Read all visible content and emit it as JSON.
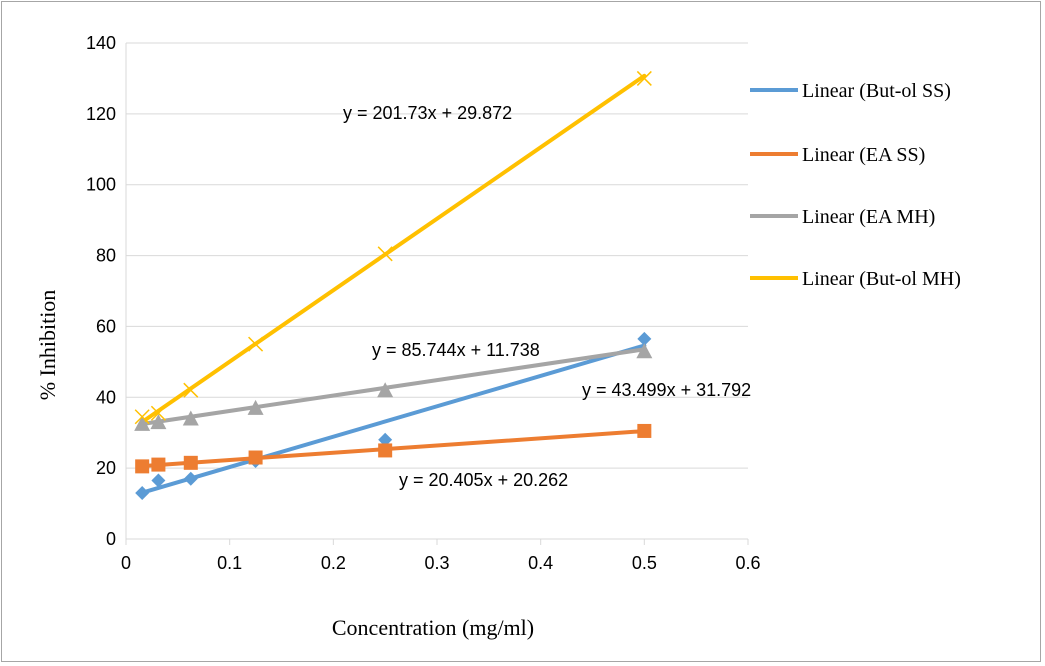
{
  "chart_data": {
    "type": "scatter",
    "xlabel": "Concentration  (mg/ml)",
    "ylabel": "% Inhibition",
    "xlim": [
      0,
      0.6
    ],
    "ylim": [
      0,
      140
    ],
    "xticks": [
      0,
      0.1,
      0.2,
      0.3,
      0.4,
      0.5,
      0.6
    ],
    "xtick_labels": [
      "0",
      "0.1",
      "0.2",
      "0.3",
      "0.4",
      "0.5",
      "0.6"
    ],
    "yticks": [
      0,
      20,
      40,
      60,
      80,
      100,
      120,
      140
    ],
    "ytick_labels": [
      "0",
      "20",
      "40",
      "60",
      "80",
      "100",
      "120",
      "140"
    ],
    "grid": "horizontal",
    "legend_position": "right",
    "series": [
      {
        "name": "Linear (But-ol SS)",
        "color": "#5b9bd5",
        "marker": "diamond",
        "x": [
          0.0156,
          0.03125,
          0.0625,
          0.125,
          0.25,
          0.5
        ],
        "y": [
          13,
          16.5,
          17,
          22,
          28,
          56.5
        ],
        "trendline": {
          "slope": 85.744,
          "intercept": 11.738,
          "label": "y = 85.744x + 11.738"
        }
      },
      {
        "name": "Linear (EA SS)",
        "color": "#ed7d31",
        "marker": "square",
        "x": [
          0.0156,
          0.03125,
          0.0625,
          0.125,
          0.25,
          0.5
        ],
        "y": [
          20.5,
          21,
          21.5,
          23,
          25,
          30.5
        ],
        "trendline": {
          "slope": 20.405,
          "intercept": 20.262,
          "label": "y = 20.405x + 20.262"
        }
      },
      {
        "name": "Linear (EA MH)",
        "color": "#a5a5a5",
        "marker": "triangle",
        "x": [
          0.0156,
          0.03125,
          0.0625,
          0.125,
          0.25,
          0.5
        ],
        "y": [
          32.5,
          33,
          34,
          37,
          42,
          53
        ],
        "trendline": {
          "slope": 43.499,
          "intercept": 31.792,
          "label": "y = 43.499x + 31.792"
        }
      },
      {
        "name": "Linear (But-ol MH)",
        "color": "#ffc000",
        "marker": "x",
        "x": [
          0.0156,
          0.03125,
          0.0625,
          0.125,
          0.25,
          0.5
        ],
        "y": [
          34.5,
          35.5,
          42,
          55,
          80.5,
          130
        ],
        "trendline": {
          "slope": 201.73,
          "intercept": 29.872,
          "label": "y = 201.73x + 29.872"
        }
      }
    ]
  }
}
